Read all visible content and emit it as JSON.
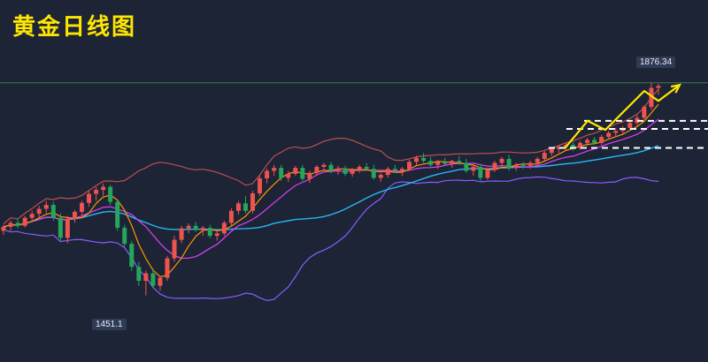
{
  "title": "黄金日线图",
  "chart_data": {
    "type": "candlestick",
    "title": "黄金日线图",
    "annotations": {
      "high_label": "1876.34",
      "low_label": "1451.1"
    },
    "ylim": [
      1420,
      1890
    ],
    "colors": {
      "up": "#ef5350",
      "down": "#26a65b",
      "title": "#ffe600",
      "ma_short": "#ff9800",
      "ma_mid": "#e040fb",
      "ma_long": "#29b6f6",
      "bands": "#c0504d",
      "lower_band": "#8a5cff",
      "hline": "#3f7d4a",
      "arrow": "#ffe600",
      "dashes": "#ffffff"
    },
    "candles": [
      [
        1580,
        1592,
        1572,
        1588
      ],
      [
        1588,
        1601,
        1580,
        1596
      ],
      [
        1596,
        1605,
        1585,
        1590
      ],
      [
        1590,
        1610,
        1587,
        1606
      ],
      [
        1606,
        1620,
        1598,
        1614
      ],
      [
        1614,
        1630,
        1606,
        1624
      ],
      [
        1624,
        1640,
        1615,
        1632
      ],
      [
        1632,
        1638,
        1600,
        1606
      ],
      [
        1606,
        1615,
        1560,
        1566
      ],
      [
        1566,
        1610,
        1555,
        1604
      ],
      [
        1604,
        1622,
        1596,
        1618
      ],
      [
        1618,
        1640,
        1610,
        1636
      ],
      [
        1636,
        1660,
        1628,
        1654
      ],
      [
        1654,
        1668,
        1640,
        1662
      ],
      [
        1662,
        1675,
        1650,
        1668
      ],
      [
        1668,
        1672,
        1632,
        1638
      ],
      [
        1638,
        1642,
        1580,
        1586
      ],
      [
        1586,
        1592,
        1548,
        1554
      ],
      [
        1554,
        1560,
        1500,
        1508
      ],
      [
        1508,
        1518,
        1470,
        1480
      ],
      [
        1480,
        1500,
        1451,
        1495
      ],
      [
        1495,
        1505,
        1465,
        1470
      ],
      [
        1470,
        1490,
        1460,
        1486
      ],
      [
        1486,
        1530,
        1480,
        1525
      ],
      [
        1525,
        1570,
        1518,
        1562
      ],
      [
        1562,
        1590,
        1555,
        1585
      ],
      [
        1585,
        1595,
        1575,
        1590
      ],
      [
        1590,
        1598,
        1578,
        1582
      ],
      [
        1582,
        1590,
        1570,
        1586
      ],
      [
        1586,
        1592,
        1565,
        1570
      ],
      [
        1570,
        1580,
        1560,
        1575
      ],
      [
        1575,
        1600,
        1570,
        1596
      ],
      [
        1596,
        1625,
        1590,
        1620
      ],
      [
        1620,
        1640,
        1612,
        1635
      ],
      [
        1635,
        1650,
        1615,
        1620
      ],
      [
        1620,
        1660,
        1615,
        1655
      ],
      [
        1655,
        1690,
        1650,
        1685
      ],
      [
        1685,
        1705,
        1675,
        1700
      ],
      [
        1700,
        1712,
        1690,
        1706
      ],
      [
        1706,
        1712,
        1680,
        1686
      ],
      [
        1686,
        1700,
        1678,
        1694
      ],
      [
        1694,
        1710,
        1690,
        1706
      ],
      [
        1706,
        1712,
        1680,
        1684
      ],
      [
        1684,
        1700,
        1676,
        1696
      ],
      [
        1696,
        1712,
        1690,
        1708
      ],
      [
        1708,
        1716,
        1700,
        1712
      ],
      [
        1712,
        1718,
        1695,
        1700
      ],
      [
        1700,
        1710,
        1692,
        1705
      ],
      [
        1705,
        1710,
        1690,
        1694
      ],
      [
        1694,
        1706,
        1688,
        1702
      ],
      [
        1702,
        1712,
        1696,
        1708
      ],
      [
        1708,
        1716,
        1700,
        1704
      ],
      [
        1704,
        1712,
        1682,
        1686
      ],
      [
        1686,
        1696,
        1678,
        1692
      ],
      [
        1692,
        1708,
        1686,
        1704
      ],
      [
        1704,
        1712,
        1696,
        1700
      ],
      [
        1700,
        1708,
        1690,
        1704
      ],
      [
        1704,
        1722,
        1700,
        1718
      ],
      [
        1718,
        1730,
        1712,
        1726
      ],
      [
        1726,
        1736,
        1716,
        1720
      ],
      [
        1720,
        1728,
        1708,
        1712
      ],
      [
        1712,
        1722,
        1704,
        1718
      ],
      [
        1718,
        1726,
        1710,
        1714
      ],
      [
        1714,
        1722,
        1706,
        1720
      ],
      [
        1720,
        1730,
        1712,
        1716
      ],
      [
        1716,
        1724,
        1696,
        1700
      ],
      [
        1700,
        1712,
        1690,
        1708
      ],
      [
        1708,
        1714,
        1680,
        1686
      ],
      [
        1686,
        1706,
        1682,
        1702
      ],
      [
        1702,
        1720,
        1698,
        1716
      ],
      [
        1716,
        1728,
        1710,
        1724
      ],
      [
        1724,
        1732,
        1700,
        1706
      ],
      [
        1706,
        1716,
        1700,
        1712
      ],
      [
        1712,
        1718,
        1704,
        1710
      ],
      [
        1710,
        1720,
        1704,
        1716
      ],
      [
        1716,
        1728,
        1712,
        1724
      ],
      [
        1724,
        1740,
        1720,
        1736
      ],
      [
        1736,
        1748,
        1730,
        1744
      ],
      [
        1744,
        1752,
        1736,
        1748
      ],
      [
        1748,
        1756,
        1742,
        1752
      ],
      [
        1752,
        1758,
        1740,
        1746
      ],
      [
        1746,
        1760,
        1742,
        1756
      ],
      [
        1756,
        1766,
        1750,
        1762
      ],
      [
        1762,
        1768,
        1752,
        1756
      ],
      [
        1756,
        1772,
        1752,
        1768
      ],
      [
        1768,
        1780,
        1762,
        1776
      ],
      [
        1776,
        1786,
        1768,
        1780
      ],
      [
        1780,
        1790,
        1772,
        1786
      ],
      [
        1786,
        1800,
        1780,
        1796
      ],
      [
        1796,
        1812,
        1790,
        1806
      ],
      [
        1806,
        1832,
        1800,
        1828
      ],
      [
        1828,
        1876.34,
        1822,
        1866
      ],
      [
        1866,
        1874,
        1852,
        1870
      ]
    ]
  }
}
